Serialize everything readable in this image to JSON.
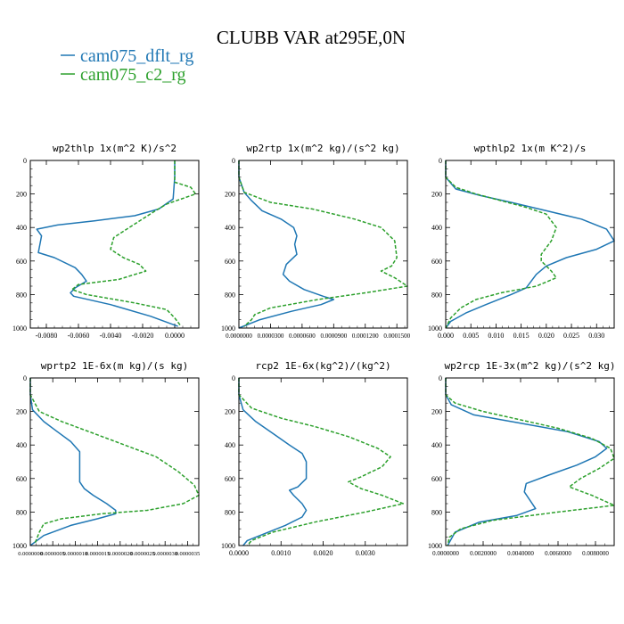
{
  "figure": {
    "title": "CLUBB VAR at295E,0N",
    "legend": [
      {
        "label": "cam075_dflt_rg",
        "color": "#1f77b4",
        "style": "solid"
      },
      {
        "label": "cam075_c2_rg",
        "color": "#2ca02c",
        "style": "dashed"
      }
    ]
  },
  "chart_data": [
    {
      "type": "line",
      "title": "wp2thlp  1x(m^2 K)/s^2",
      "xlim": [
        -0.009,
        0.0015
      ],
      "ylim": [
        1000,
        0
      ],
      "x_ticks": [
        -0.008,
        -0.006,
        -0.004,
        -0.002,
        0.0
      ],
      "x_tick_labels": [
        "-0.0080",
        "-0.0060",
        "-0.0040",
        "-0.0020",
        "0.0000"
      ],
      "y_ticks": [
        0,
        200,
        400,
        600,
        800,
        1000
      ],
      "y_tick_labels": [
        "0",
        "200",
        "400",
        "600",
        "800",
        "1000"
      ],
      "series": [
        {
          "name": "cam075_dflt_rg",
          "color": "#1f77b4",
          "dash": false,
          "x": [
            0.0,
            0.0,
            -0.0001,
            -0.001,
            -0.0025,
            -0.005,
            -0.0073,
            -0.0086,
            -0.0083,
            -0.0085,
            -0.0075,
            -0.0062,
            -0.0058,
            -0.0055,
            -0.0062,
            -0.0065,
            -0.0063,
            -0.004,
            -0.0015,
            0.0002
          ],
          "y": [
            0,
            100,
            230,
            290,
            330,
            360,
            385,
            410,
            450,
            550,
            580,
            640,
            680,
            720,
            760,
            790,
            810,
            860,
            930,
            990
          ]
        },
        {
          "name": "cam075_c2_rg",
          "color": "#2ca02c",
          "dash": true,
          "x": [
            0.0,
            0.0,
            0.001,
            0.0013,
            -0.0005,
            -0.0012,
            -0.0025,
            -0.0038,
            -0.004,
            -0.0032,
            -0.0022,
            -0.0018,
            -0.0035,
            -0.006,
            -0.0064,
            -0.0055,
            -0.0025,
            -0.0005,
            0.0,
            0.0004
          ],
          "y": [
            0,
            130,
            160,
            200,
            260,
            300,
            380,
            460,
            530,
            580,
            620,
            660,
            710,
            740,
            770,
            800,
            850,
            890,
            940,
            990
          ]
        }
      ]
    },
    {
      "type": "line",
      "title": "wp2rtp  1x(m^2 kg)/(s^2 kg)",
      "xlim": [
        0.0,
        0.00016
      ],
      "ylim": [
        1000,
        0
      ],
      "x_ticks": [
        0.0,
        3e-05,
        6e-05,
        9e-05,
        0.00012,
        0.00015
      ],
      "x_tick_labels": [
        "0.0000000",
        "0.0000300",
        "0.0000600",
        "0.0000900",
        "0.0001200",
        "0.0001500"
      ],
      "y_ticks": [
        0,
        200,
        400,
        600,
        800,
        1000
      ],
      "y_tick_labels": [
        "0",
        "200",
        "400",
        "600",
        "800",
        "1000"
      ],
      "series": [
        {
          "name": "cam075_dflt_rg",
          "color": "#1f77b4",
          "dash": false,
          "x": [
            0.0,
            0.0,
            5e-06,
            1.2e-05,
            2.2e-05,
            4e-05,
            5.2e-05,
            5.5e-05,
            5.3e-05,
            5.5e-05,
            4.5e-05,
            4.2e-05,
            4.8e-05,
            6.2e-05,
            8e-05,
            9e-05,
            7.8e-05,
            5e-05,
            2e-05,
            0.0
          ],
          "y": [
            0,
            100,
            190,
            240,
            300,
            350,
            400,
            450,
            500,
            560,
            620,
            680,
            720,
            770,
            810,
            830,
            860,
            900,
            950,
            1000
          ]
        },
        {
          "name": "cam075_c2_rg",
          "color": "#2ca02c",
          "dash": true,
          "x": [
            0.0,
            0.0,
            5e-06,
            3e-05,
            7e-05,
            0.00011,
            0.000135,
            0.000148,
            0.00015,
            0.000145,
            0.000135,
            0.000148,
            0.00016,
            0.00012,
            7.5e-05,
            3e-05,
            1.5e-05,
            1.2e-05,
            5e-06
          ],
          "y": [
            0,
            100,
            190,
            250,
            290,
            350,
            400,
            480,
            580,
            630,
            660,
            700,
            750,
            790,
            830,
            880,
            920,
            950,
            990
          ]
        }
      ]
    },
    {
      "type": "line",
      "title": "wpthlp2  1x(m K^2)/s",
      "xlim": [
        0.0,
        0.0335
      ],
      "ylim": [
        1000,
        0
      ],
      "x_ticks": [
        0.0,
        0.005,
        0.01,
        0.015,
        0.02,
        0.025,
        0.03
      ],
      "x_tick_labels": [
        "0.000",
        "0.005",
        "0.010",
        "0.015",
        "0.020",
        "0.025",
        "0.030"
      ],
      "y_ticks": [
        0,
        200,
        400,
        600,
        800,
        1000
      ],
      "y_tick_labels": [
        "0",
        "200",
        "400",
        "600",
        "800",
        "1000"
      ],
      "series": [
        {
          "name": "cam075_dflt_rg",
          "color": "#1f77b4",
          "dash": false,
          "x": [
            0.0,
            0.0,
            0.002,
            0.007,
            0.013,
            0.02,
            0.027,
            0.032,
            0.0335,
            0.03,
            0.024,
            0.02,
            0.018,
            0.017,
            0.016,
            0.013,
            0.008,
            0.004,
            0.001,
            0.0
          ],
          "y": [
            0,
            100,
            170,
            210,
            250,
            300,
            350,
            410,
            480,
            530,
            580,
            630,
            680,
            720,
            760,
            800,
            860,
            910,
            960,
            1000
          ]
        },
        {
          "name": "cam075_c2_rg",
          "color": "#2ca02c",
          "dash": true,
          "x": [
            0.0,
            0.0,
            0.002,
            0.006,
            0.011,
            0.016,
            0.02,
            0.022,
            0.021,
            0.019,
            0.019,
            0.021,
            0.022,
            0.018,
            0.011,
            0.006,
            0.003,
            0.001,
            0.0
          ],
          "y": [
            0,
            100,
            160,
            200,
            240,
            280,
            320,
            400,
            480,
            560,
            600,
            660,
            700,
            750,
            790,
            830,
            880,
            940,
            1000
          ]
        }
      ]
    },
    {
      "type": "line",
      "title": "wprtp2  1E-6x(m kg)/(s kg)",
      "xlim": [
        0.0,
        3.75e-06
      ],
      "ylim": [
        1000,
        0
      ],
      "x_ticks": [
        0.0,
        5e-07,
        1e-06,
        1.5e-06,
        2e-06,
        2.5e-06,
        3e-06,
        3.5e-06
      ],
      "x_tick_labels": [
        "0.0000000",
        "0.0000005",
        "0.0000010",
        "0.0000015",
        "0.0000020",
        "0.0000025",
        "0.0000030",
        "0.0000035"
      ],
      "y_ticks": [
        0,
        200,
        400,
        600,
        800,
        1000
      ],
      "y_tick_labels": [
        "0",
        "200",
        "400",
        "600",
        "800",
        "1000"
      ],
      "series": [
        {
          "name": "cam075_dflt_rg",
          "color": "#1f77b4",
          "dash": false,
          "x": [
            0.0,
            0.0,
            5e-08,
            3e-07,
            6e-07,
            9e-07,
            1.1e-06,
            1.1e-06,
            1.1e-06,
            1.2e-06,
            1.4e-06,
            1.7e-06,
            1.9e-06,
            1.9e-06,
            1.5e-06,
            9e-07,
            3e-07,
            0.0
          ],
          "y": [
            0,
            100,
            190,
            260,
            320,
            380,
            440,
            520,
            620,
            660,
            700,
            750,
            790,
            810,
            840,
            880,
            940,
            1000
          ]
        },
        {
          "name": "cam075_c2_rg",
          "color": "#2ca02c",
          "dash": true,
          "x": [
            0.0,
            0.0,
            2e-07,
            7e-07,
            1.4e-06,
            2.1e-06,
            2.8e-06,
            3.3e-06,
            3.65e-06,
            3.75e-06,
            3.4e-06,
            2.6e-06,
            1.6e-06,
            7e-07,
            3e-07,
            2e-07,
            1e-07
          ],
          "y": [
            0,
            100,
            200,
            260,
            330,
            400,
            470,
            560,
            640,
            700,
            750,
            790,
            810,
            840,
            870,
            920,
            990
          ]
        }
      ]
    },
    {
      "type": "line",
      "title": "rcp2  1E-6x(kg^2)/(kg^2)",
      "xlim": [
        0.0,
        0.004
      ],
      "ylim": [
        1000,
        0
      ],
      "x_ticks": [
        0.0,
        0.001,
        0.002,
        0.003
      ],
      "x_tick_labels": [
        "0.0000",
        "0.0010",
        "0.0020",
        "0.0030"
      ],
      "y_ticks": [
        0,
        200,
        400,
        600,
        800,
        1000
      ],
      "y_tick_labels": [
        "0",
        "200",
        "400",
        "600",
        "800",
        "1000"
      ],
      "series": [
        {
          "name": "cam075_dflt_rg",
          "color": "#1f77b4",
          "dash": false,
          "x": [
            0.0,
            0.0,
            0.0001,
            0.0004,
            0.0008,
            0.0012,
            0.0015,
            0.0016,
            0.0016,
            0.0014,
            0.0012,
            0.0013,
            0.0015,
            0.0016,
            0.0015,
            0.0011,
            0.0006,
            0.0002,
            0.0001
          ],
          "y": [
            0,
            100,
            190,
            260,
            330,
            400,
            450,
            500,
            600,
            650,
            670,
            700,
            750,
            790,
            830,
            880,
            930,
            970,
            1000
          ]
        },
        {
          "name": "cam075_c2_rg",
          "color": "#2ca02c",
          "dash": true,
          "x": [
            0.0,
            0.0,
            0.0003,
            0.001,
            0.0018,
            0.0026,
            0.0033,
            0.0036,
            0.0034,
            0.0029,
            0.0026,
            0.0029,
            0.0034,
            0.0039,
            0.003,
            0.0018,
            0.0008,
            0.0003,
            0.0002
          ],
          "y": [
            0,
            100,
            180,
            240,
            290,
            350,
            420,
            470,
            530,
            590,
            620,
            660,
            700,
            750,
            800,
            860,
            920,
            970,
            1000
          ]
        }
      ]
    },
    {
      "type": "line",
      "title": "wp2rcp  1E-3x(m^2 kg)/(s^2 kg)",
      "xlim": [
        0.0,
        0.009
      ],
      "ylim": [
        1000,
        0
      ],
      "x_ticks": [
        0.0,
        0.002,
        0.004,
        0.006,
        0.008
      ],
      "x_tick_labels": [
        "0.0000000",
        "0.0020000",
        "0.0040000",
        "0.0060000",
        "0.0080000"
      ],
      "y_ticks": [
        0,
        200,
        400,
        600,
        800,
        1000
      ],
      "y_tick_labels": [
        "0",
        "200",
        "400",
        "600",
        "800",
        "1000"
      ],
      "series": [
        {
          "name": "cam075_dflt_rg",
          "color": "#1f77b4",
          "dash": false,
          "x": [
            0.0,
            0.0,
            0.0003,
            0.0015,
            0.004,
            0.0065,
            0.0082,
            0.0086,
            0.008,
            0.007,
            0.0055,
            0.0043,
            0.0042,
            0.0045,
            0.0048,
            0.0038,
            0.0018,
            0.0005,
            0.0001
          ],
          "y": [
            0,
            100,
            160,
            220,
            270,
            320,
            380,
            420,
            470,
            520,
            580,
            630,
            680,
            730,
            780,
            820,
            860,
            920,
            1000
          ]
        },
        {
          "name": "cam075_c2_rg",
          "color": "#2ca02c",
          "dash": true,
          "x": [
            0.0,
            0.0,
            0.0005,
            0.002,
            0.004,
            0.006,
            0.0078,
            0.0088,
            0.009,
            0.0082,
            0.0072,
            0.0066,
            0.0078,
            0.009,
            0.006,
            0.0025,
            0.0008,
            0.0002,
            0.0001
          ],
          "y": [
            0,
            100,
            150,
            200,
            250,
            300,
            360,
            420,
            480,
            540,
            600,
            650,
            700,
            760,
            800,
            850,
            900,
            950,
            1000
          ]
        }
      ]
    }
  ]
}
